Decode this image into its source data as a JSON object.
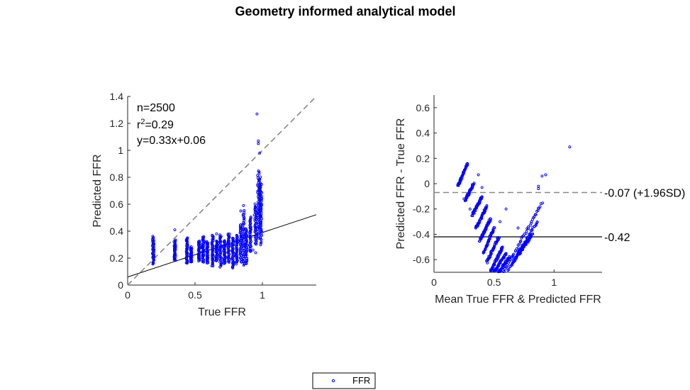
{
  "figure": {
    "title": "Geometry informed analytical model",
    "legend": {
      "entries": [
        "FFR"
      ],
      "placement": "bottom-center",
      "marker_color": "#0000ff"
    }
  },
  "chart_data": [
    {
      "type": "scatter",
      "xlabel": "True FFR",
      "ylabel": "Predicted FFR",
      "xlim": [
        0,
        1.4
      ],
      "ylim": [
        0,
        1.4
      ],
      "xticks": [
        0,
        0.5,
        1
      ],
      "yticks": [
        0,
        0.2,
        0.4,
        0.6,
        0.8,
        1,
        1.2,
        1.4
      ],
      "tick_labels_x": [
        "0",
        "0.5",
        "1"
      ],
      "tick_labels_y": [
        "0",
        "0.2",
        "0.4",
        "0.6",
        "0.8",
        "1",
        "1.2",
        "1.4"
      ],
      "annotations": [
        "n=2500",
        "r",
        "2",
        "=0.29",
        "y=0.33x+0.06"
      ],
      "identity_line": {
        "slope": 1,
        "intercept": 0,
        "style": "dashed",
        "color": "#888888"
      },
      "fit_line": {
        "slope": 0.33,
        "intercept": 0.06,
        "style": "solid",
        "color": "#000000"
      },
      "marker_color": "#0000ff",
      "series": [
        {
          "name": "FFR",
          "columns": [
            {
              "x": 0.19,
              "ymin": 0.16,
              "ymax": 0.36
            },
            {
              "x": 0.35,
              "ymin": 0.18,
              "ymax": 0.33
            },
            {
              "x": 0.44,
              "ymin": 0.16,
              "ymax": 0.35
            },
            {
              "x": 0.47,
              "ymin": 0.17,
              "ymax": 0.28
            },
            {
              "x": 0.53,
              "ymin": 0.18,
              "ymax": 0.33
            },
            {
              "x": 0.56,
              "ymin": 0.17,
              "ymax": 0.36
            },
            {
              "x": 0.59,
              "ymin": 0.16,
              "ymax": 0.32
            },
            {
              "x": 0.63,
              "ymin": 0.14,
              "ymax": 0.37
            },
            {
              "x": 0.66,
              "ymin": 0.18,
              "ymax": 0.33
            },
            {
              "x": 0.69,
              "ymin": 0.13,
              "ymax": 0.37
            },
            {
              "x": 0.72,
              "ymin": 0.16,
              "ymax": 0.33
            },
            {
              "x": 0.75,
              "ymin": 0.17,
              "ymax": 0.38
            },
            {
              "x": 0.78,
              "ymin": 0.13,
              "ymax": 0.35
            },
            {
              "x": 0.81,
              "ymin": 0.16,
              "ymax": 0.37
            },
            {
              "x": 0.84,
              "ymin": 0.17,
              "ymax": 0.45
            },
            {
              "x": 0.86,
              "ymin": 0.15,
              "ymax": 0.55
            },
            {
              "x": 0.88,
              "ymin": 0.16,
              "ymax": 0.42
            },
            {
              "x": 0.91,
              "ymin": 0.25,
              "ymax": 0.5
            },
            {
              "x": 0.95,
              "ymin": 0.3,
              "ymax": 0.6
            },
            {
              "x": 0.97,
              "ymin": 0.35,
              "ymax": 0.85
            },
            {
              "x": 0.98,
              "ymin": 0.4,
              "ymax": 0.8
            },
            {
              "x": 0.99,
              "ymin": 0.3,
              "ymax": 0.75
            }
          ],
          "points": [
            {
              "x": 0.96,
              "y": 1.27
            },
            {
              "x": 0.97,
              "y": 1.07
            },
            {
              "x": 0.97,
              "y": 1.05
            },
            {
              "x": 0.98,
              "y": 0.98
            },
            {
              "x": 0.35,
              "y": 0.41
            },
            {
              "x": 0.84,
              "y": 0.55
            },
            {
              "x": 0.86,
              "y": 0.59
            },
            {
              "x": 0.91,
              "y": 0.46
            },
            {
              "x": 0.94,
              "y": 0.52
            },
            {
              "x": 0.93,
              "y": 0.26
            },
            {
              "x": 0.66,
              "y": 0.38
            },
            {
              "x": 0.95,
              "y": 0.24
            }
          ]
        }
      ]
    },
    {
      "type": "scatter",
      "xlabel": "Mean True FFR & Predicted FFR",
      "ylabel": "Predicted FFR - True FFR",
      "xlim": [
        0,
        1.4
      ],
      "ylim": [
        -0.7,
        0.7
      ],
      "xticks": [
        0,
        0.5,
        1
      ],
      "yticks": [
        -0.6,
        -0.4,
        -0.2,
        0,
        0.2,
        0.4,
        0.6
      ],
      "tick_labels_x": [
        "0",
        "0.5",
        "1"
      ],
      "tick_labels_y": [
        "-0.6",
        "-0.4",
        "-0.2",
        "0",
        "0.2",
        "0.4",
        "0.6"
      ],
      "reference_lines": [
        {
          "y": -0.07,
          "label": "-0.07 (+1.96SD)",
          "style": "dashed",
          "color": "#888888"
        },
        {
          "y": -0.42,
          "label": "-0.42",
          "style": "solid",
          "color": "#000000"
        }
      ],
      "marker_color": "#0000ff",
      "series": [
        {
          "name": "FFR",
          "bands": [
            {
              "x0": 0.2,
              "y0": -0.02,
              "x1": 0.28,
              "y1": 0.16
            },
            {
              "x0": 0.26,
              "y0": -0.13,
              "x1": 0.33,
              "y1": 0.0
            },
            {
              "x0": 0.32,
              "y0": -0.25,
              "x1": 0.4,
              "y1": -0.1
            },
            {
              "x0": 0.35,
              "y0": -0.35,
              "x1": 0.44,
              "y1": -0.18
            },
            {
              "x0": 0.38,
              "y0": -0.45,
              "x1": 0.47,
              "y1": -0.28
            },
            {
              "x0": 0.41,
              "y0": -0.55,
              "x1": 0.5,
              "y1": -0.35
            },
            {
              "x0": 0.44,
              "y0": -0.62,
              "x1": 0.54,
              "y1": -0.42
            },
            {
              "x0": 0.47,
              "y0": -0.7,
              "x1": 0.57,
              "y1": -0.5
            },
            {
              "x0": 0.5,
              "y0": -0.7,
              "x1": 0.6,
              "y1": -0.55
            },
            {
              "x0": 0.54,
              "y0": -0.7,
              "x1": 0.63,
              "y1": -0.58
            },
            {
              "x0": 0.58,
              "y0": -0.7,
              "x1": 0.9,
              "y1": -0.15
            },
            {
              "x0": 0.62,
              "y0": -0.68,
              "x1": 0.86,
              "y1": -0.3
            },
            {
              "x0": 0.66,
              "y0": -0.62,
              "x1": 0.82,
              "y1": -0.4
            },
            {
              "x0": 0.7,
              "y0": -0.55,
              "x1": 0.8,
              "y1": -0.42
            }
          ],
          "points": [
            {
              "x": 1.13,
              "y": 0.29
            },
            {
              "x": 0.93,
              "y": 0.07
            },
            {
              "x": 0.9,
              "y": 0.06
            },
            {
              "x": 0.87,
              "y": -0.02
            },
            {
              "x": 0.87,
              "y": -0.04
            },
            {
              "x": 0.37,
              "y": 0.07
            },
            {
              "x": 0.4,
              "y": -0.03
            },
            {
              "x": 0.25,
              "y": -0.12
            },
            {
              "x": 0.3,
              "y": -0.2
            },
            {
              "x": 0.6,
              "y": -0.2
            },
            {
              "x": 0.55,
              "y": -0.3
            },
            {
              "x": 0.7,
              "y": -0.35
            }
          ]
        }
      ]
    }
  ]
}
